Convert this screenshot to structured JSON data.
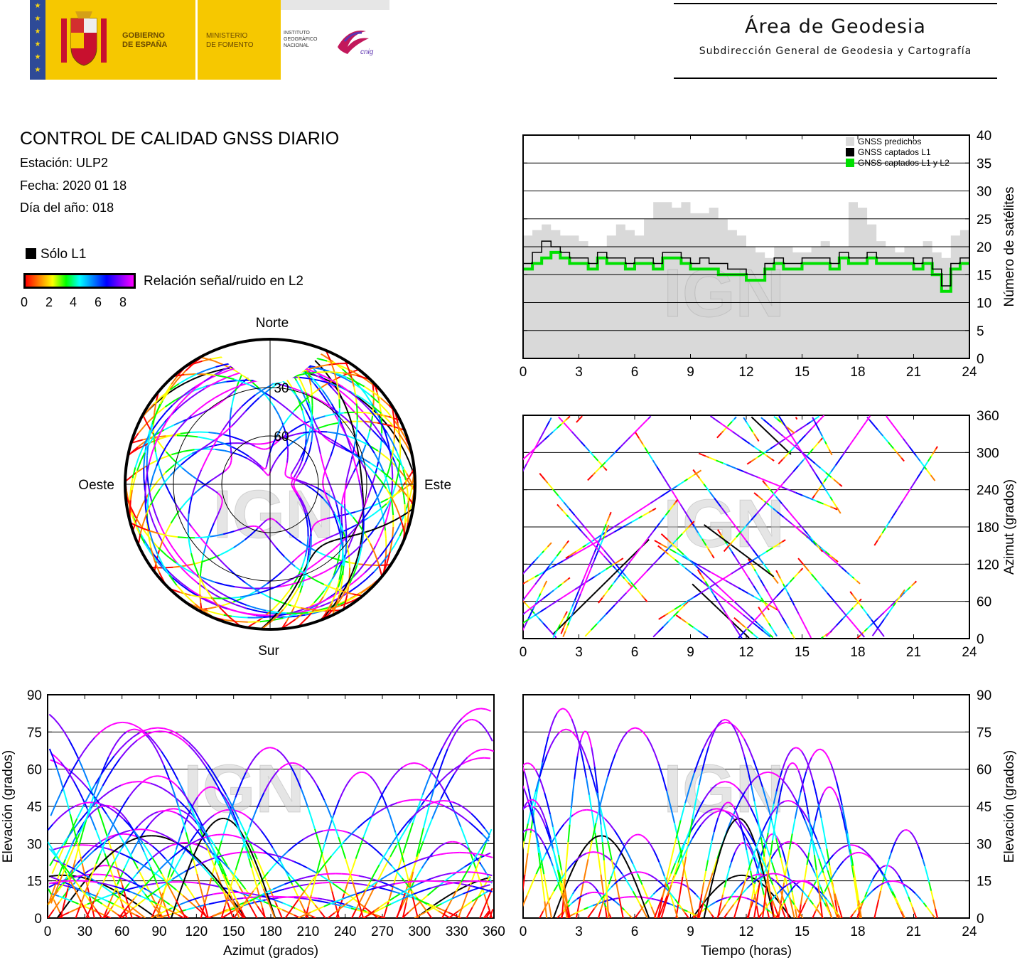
{
  "header": {
    "gob_line1": "GOBIERNO",
    "gob_line2": "DE ESPAÑA",
    "min_line1": "MINISTERIO",
    "min_line2": "DE FOMENTO",
    "ign_line1": "INSTITUTO",
    "ign_line2": "GEOGRÁFICO",
    "ign_line3": "NACIONAL",
    "cnig": "cnig",
    "area_title": "Área de Geodesia",
    "area_subtitle": "Subdirección General de Geodesia y Cartografía"
  },
  "info": {
    "title": "CONTROL DE CALIDAD GNSS DIARIO",
    "station": "Estación: ULP2",
    "date": "Fecha: 2020 01 18",
    "doy": "Día del año: 018",
    "legend_l1": "Sólo L1",
    "colorbar_label": "Relación señal/ruido en L2",
    "colorbar_ticks": [
      "0",
      "2",
      "4",
      "6",
      "8"
    ]
  },
  "colors": {
    "predicted": "#d9d9d9",
    "l1": "#000000",
    "l1l2": "#00e000",
    "snr_scale": [
      "#ff0000",
      "#ff8000",
      "#ffff00",
      "#00ff00",
      "#00ffff",
      "#0080ff",
      "#0000ff",
      "#8000ff",
      "#ff00ff"
    ]
  },
  "watermark": "IGN",
  "chart_data": [
    {
      "type": "area",
      "legend": [
        "GNSS predichos",
        "GNSS captados L1",
        "GNSS captados L1 y L2"
      ],
      "ylabel": "Número de satélites",
      "ylim": [
        0,
        40
      ],
      "yticks": [
        "0",
        "5",
        "10",
        "15",
        "20",
        "25",
        "30",
        "35",
        "40"
      ],
      "xlim": [
        0,
        24
      ],
      "xticks": [
        "0",
        "3",
        "6",
        "9",
        "12",
        "15",
        "18",
        "21",
        "24"
      ],
      "x_hours": [
        0,
        0.5,
        1,
        1.5,
        2,
        2.5,
        3,
        3.5,
        4,
        4.5,
        5,
        5.5,
        6,
        6.5,
        7,
        7.5,
        8,
        8.5,
        9,
        9.5,
        10,
        10.5,
        11,
        11.5,
        12,
        12.5,
        13,
        13.5,
        14,
        14.5,
        15,
        15.5,
        16,
        16.5,
        17,
        17.5,
        18,
        18.5,
        19,
        19.5,
        20,
        20.5,
        21,
        21.5,
        22,
        22.5,
        23,
        23.5,
        24
      ],
      "series": [
        {
          "name": "GNSS predichos",
          "values": [
            22,
            23,
            24,
            23,
            22,
            22,
            21,
            20,
            20,
            22,
            24,
            23,
            22,
            25,
            28,
            28,
            27,
            28,
            26,
            26,
            27,
            25,
            23,
            22,
            20,
            19,
            18,
            20,
            20,
            19,
            19,
            20,
            21,
            20,
            20,
            28,
            27,
            24,
            21,
            20,
            19,
            20,
            20,
            21,
            19,
            18,
            22,
            23,
            23
          ]
        },
        {
          "name": "GNSS captados L1",
          "values": [
            17,
            19,
            21,
            20,
            19,
            18,
            18,
            17,
            19,
            18,
            18,
            17,
            18,
            18,
            17,
            19,
            19,
            18,
            17,
            18,
            17,
            17,
            16,
            16,
            15,
            15,
            17,
            18,
            17,
            17,
            18,
            18,
            18,
            17,
            19,
            18,
            18,
            19,
            18,
            18,
            18,
            18,
            17,
            18,
            16,
            13,
            17,
            18,
            20
          ]
        },
        {
          "name": "GNSS captados L1 y L2",
          "values": [
            16,
            17,
            18,
            19,
            18,
            17,
            17,
            16,
            18,
            17,
            17,
            16,
            17,
            17,
            16,
            18,
            18,
            17,
            16,
            16,
            16,
            15,
            15,
            15,
            14,
            14,
            16,
            17,
            16,
            16,
            17,
            17,
            17,
            16,
            18,
            17,
            17,
            18,
            17,
            17,
            17,
            17,
            16,
            17,
            15,
            12,
            16,
            17,
            19
          ]
        }
      ]
    },
    {
      "type": "scatter",
      "title": "",
      "ylabel": "Azimut (grados)",
      "ylim": [
        0,
        360
      ],
      "yticks": [
        "0",
        "60",
        "120",
        "180",
        "240",
        "300",
        "360"
      ],
      "xlim": [
        0,
        24
      ],
      "xticks": [
        "0",
        "3",
        "6",
        "9",
        "12",
        "15",
        "18",
        "21",
        "24"
      ]
    },
    {
      "type": "scatter",
      "xlabel": "Azimut (grados)",
      "ylabel": "Elevación (grados)",
      "xlim": [
        0,
        360
      ],
      "ylim": [
        0,
        90
      ],
      "xticks": [
        "0",
        "30",
        "60",
        "90",
        "120",
        "150",
        "180",
        "210",
        "240",
        "270",
        "300",
        "330",
        "360"
      ],
      "yticks": [
        "0",
        "15",
        "30",
        "45",
        "60",
        "75",
        "90"
      ]
    },
    {
      "type": "scatter",
      "xlabel": "Tiempo (horas)",
      "ylabel": "Elevación (grados)",
      "xlim": [
        0,
        24
      ],
      "ylim": [
        0,
        90
      ],
      "xticks": [
        "0",
        "3",
        "6",
        "9",
        "12",
        "15",
        "18",
        "21",
        "24"
      ],
      "yticks": [
        "0",
        "15",
        "30",
        "45",
        "60",
        "75",
        "90"
      ]
    },
    {
      "type": "scatter",
      "polar": true,
      "labels": {
        "north": "Norte",
        "south": "Sur",
        "east": "Este",
        "west": "Oeste"
      },
      "ring_labels": [
        "30",
        "60"
      ]
    }
  ]
}
